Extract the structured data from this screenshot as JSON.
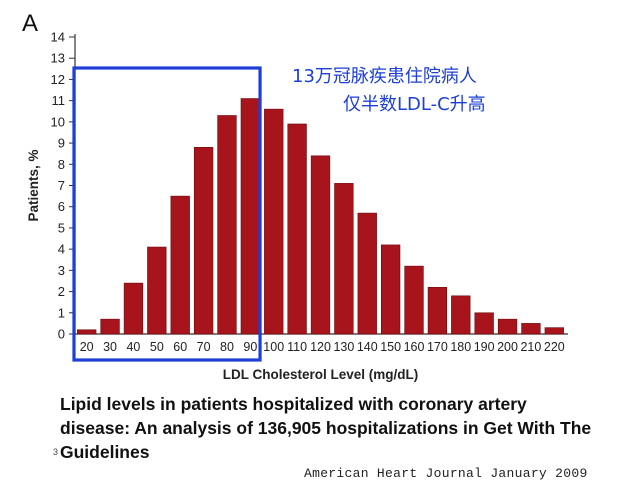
{
  "panel_label": "A",
  "annotation": {
    "line1": "13万冠脉疾患住院病人",
    "line2": "仅半数LDL-C升高"
  },
  "caption": {
    "title": "Lipid levels in patients hospitalized with coronary artery disease: An analysis of 136,905 hospitalizations in Get With The Guidelines",
    "source": "American Heart Journal  January 2009",
    "footnote_mark": "3"
  },
  "chart_data": {
    "type": "bar",
    "title": "",
    "xlabel": "LDL Cholesterol Level (mg/dL)",
    "ylabel": "Patients, %",
    "categories": [
      "20",
      "30",
      "40",
      "50",
      "60",
      "70",
      "80",
      "90",
      "100",
      "110",
      "120",
      "130",
      "140",
      "150",
      "160",
      "170",
      "180",
      "190",
      "200",
      "210",
      "220"
    ],
    "values": [
      0.2,
      0.7,
      2.4,
      4.1,
      6.5,
      8.8,
      10.3,
      11.1,
      10.6,
      9.9,
      8.4,
      7.1,
      5.7,
      4.2,
      3.2,
      2.2,
      1.8,
      1.0,
      0.7,
      0.5,
      0.3
    ],
    "ylim": [
      0,
      14
    ],
    "yticks": [
      "0",
      "1",
      "2",
      "3",
      "4",
      "5",
      "6",
      "7",
      "8",
      "9",
      "10",
      "11",
      "12",
      "13",
      "14"
    ],
    "highlight_range": [
      20,
      90
    ],
    "colors": {
      "bar": "#a8141b",
      "bar_stroke": "#6e0a0e",
      "highlight": "#1d3fd8",
      "axis": "#333333"
    }
  }
}
